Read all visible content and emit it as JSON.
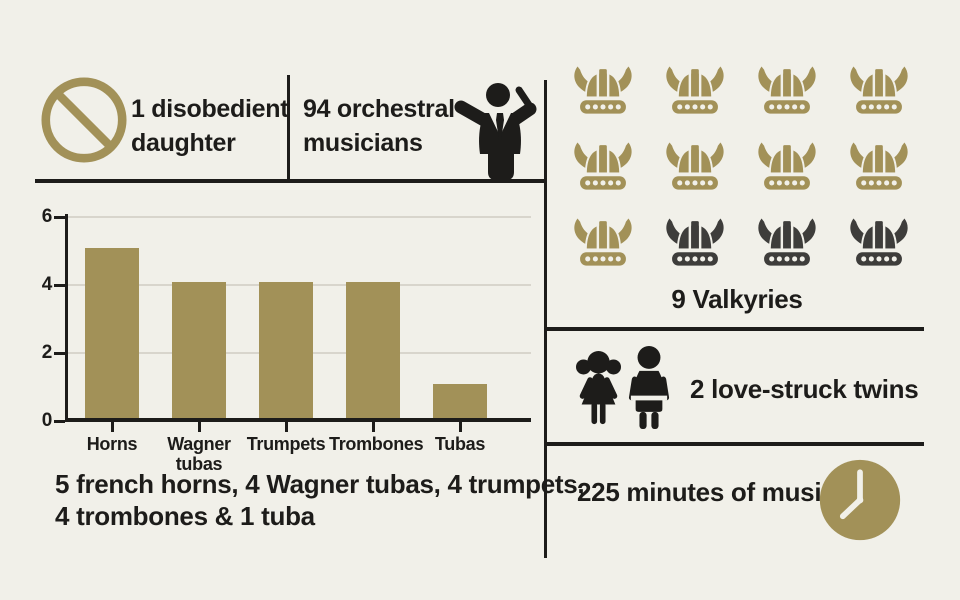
{
  "colors": {
    "background": "#f1f0e9",
    "gold": "#a29158",
    "dark_gray": "#3e3d3b",
    "text": "#1d1c1a",
    "gridline": "#d8d5cc"
  },
  "stats": {
    "daughter": {
      "icon": "no-symbol-icon",
      "line1": "1 disobedient",
      "line2": "daughter"
    },
    "musicians": {
      "icon": "conductor-icon",
      "line1": "94 orchestral",
      "line2": "musicians"
    },
    "valkyries": {
      "icon": "viking-helmet-icon",
      "label": "9 Valkyries",
      "gold_count": 9,
      "dark_count": 3
    },
    "twins": {
      "icons": [
        "girl-icon",
        "boy-icon"
      ],
      "label": "2 love-struck twins"
    },
    "music": {
      "icon": "clock-icon",
      "label": "225 minutes of music"
    }
  },
  "chart_data": {
    "type": "bar",
    "title": "",
    "xlabel": "",
    "ylabel": "",
    "categories": [
      "Horns",
      "Wagner tubas",
      "Trumpets",
      "Trombones",
      "Tubas"
    ],
    "values": [
      5,
      4,
      4,
      4,
      1
    ],
    "ylim": [
      0,
      6
    ],
    "yticks": [
      0,
      2,
      4,
      6
    ],
    "grid": true,
    "legend": false,
    "bar_color": "#a29158",
    "caption_lines": [
      "5 french horns, 4 Wagner tubas, 4 trumpets,",
      "4 trombones & 1 tuba"
    ]
  }
}
